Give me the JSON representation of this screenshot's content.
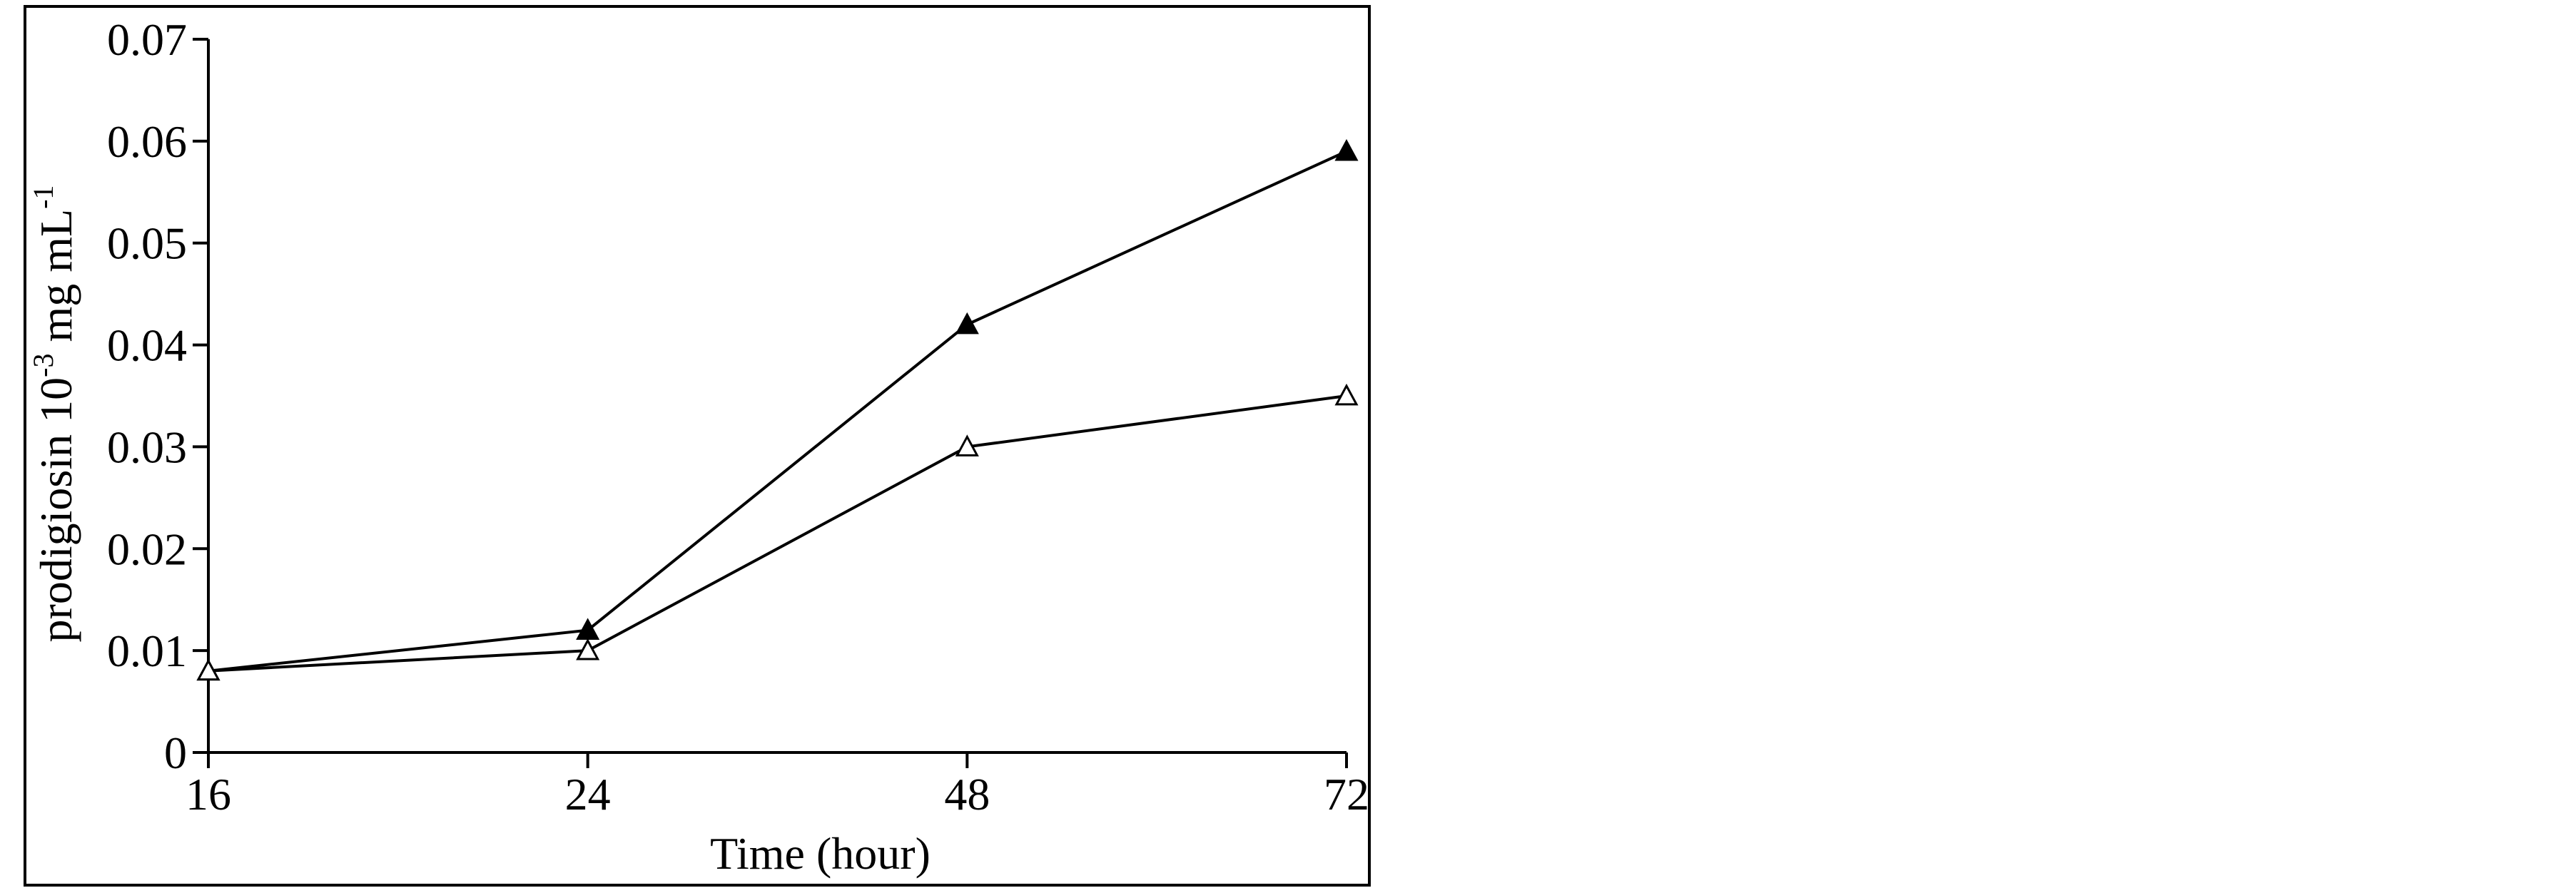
{
  "chart_data": {
    "type": "line",
    "categories": [
      "16",
      "24",
      "48",
      "72"
    ],
    "series": [
      {
        "marker": "filled-triangle",
        "color": "#000000",
        "values": [
          0.008,
          0.012,
          0.042,
          0.059
        ]
      },
      {
        "marker": "open-triangle",
        "color": "#000000",
        "values": [
          0.008,
          0.01,
          0.03,
          0.035
        ]
      }
    ],
    "xlabel": "Time (hour)",
    "ylabel": {
      "base": "prodigiosin 10",
      "exp1": "-3",
      "mid": " mg mL",
      "exp2": "-1"
    },
    "ylim": [
      0,
      0.07
    ],
    "yticks": [
      "0",
      "0.01",
      "0.02",
      "0.03",
      "0.04",
      "0.05",
      "0.06",
      "0.07"
    ],
    "grid": false,
    "legend": "none"
  }
}
